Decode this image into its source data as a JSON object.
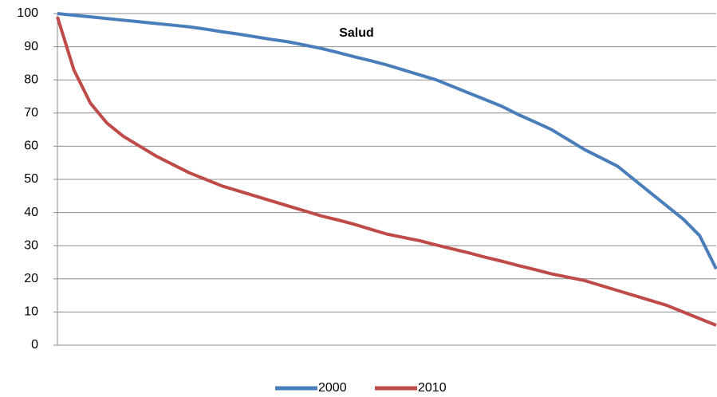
{
  "chart_data": {
    "type": "line",
    "title": "Salud",
    "categories": [
      null,
      null,
      null,
      null,
      null,
      null,
      null,
      null,
      null,
      null,
      null,
      null,
      null,
      null,
      null,
      null,
      null,
      null,
      null,
      null,
      null,
      null,
      null,
      null,
      null,
      null,
      null,
      null,
      null,
      null,
      null,
      null,
      null,
      null,
      null,
      null,
      null,
      null,
      null,
      null,
      null
    ],
    "series": [
      {
        "name": "2000",
        "color": "#4a7ebb",
        "values": [
          100,
          99.5,
          99,
          98.5,
          98,
          97.5,
          97,
          96.5,
          96,
          95.3,
          94.5,
          93.8,
          93,
          92.2,
          91.5,
          90.5,
          89.5,
          88.3,
          87,
          85.8,
          84.5,
          83,
          81.5,
          80,
          78,
          76,
          74,
          72,
          69.5,
          67.3,
          65,
          62,
          59,
          56.5,
          54,
          50,
          46,
          42,
          38,
          33,
          23
        ]
      },
      {
        "name": "2010",
        "color": "#be4b48",
        "values": [
          99,
          83,
          73,
          67,
          63,
          60,
          57,
          54.5,
          52,
          50,
          48,
          46.5,
          45,
          43.5,
          42,
          40.5,
          39,
          37.8,
          36.5,
          35,
          33.5,
          32.5,
          31.5,
          30.2,
          29,
          27.8,
          26.5,
          25.3,
          24,
          22.8,
          21.5,
          20.5,
          19.5,
          18,
          16.5,
          15,
          13.5,
          12,
          10,
          8,
          6
        ]
      }
    ],
    "ylim": [
      0,
      100
    ],
    "yticks": [
      0,
      10,
      20,
      30,
      40,
      50,
      60,
      70,
      80,
      90,
      100
    ],
    "grid": true,
    "legend": "bottom"
  }
}
